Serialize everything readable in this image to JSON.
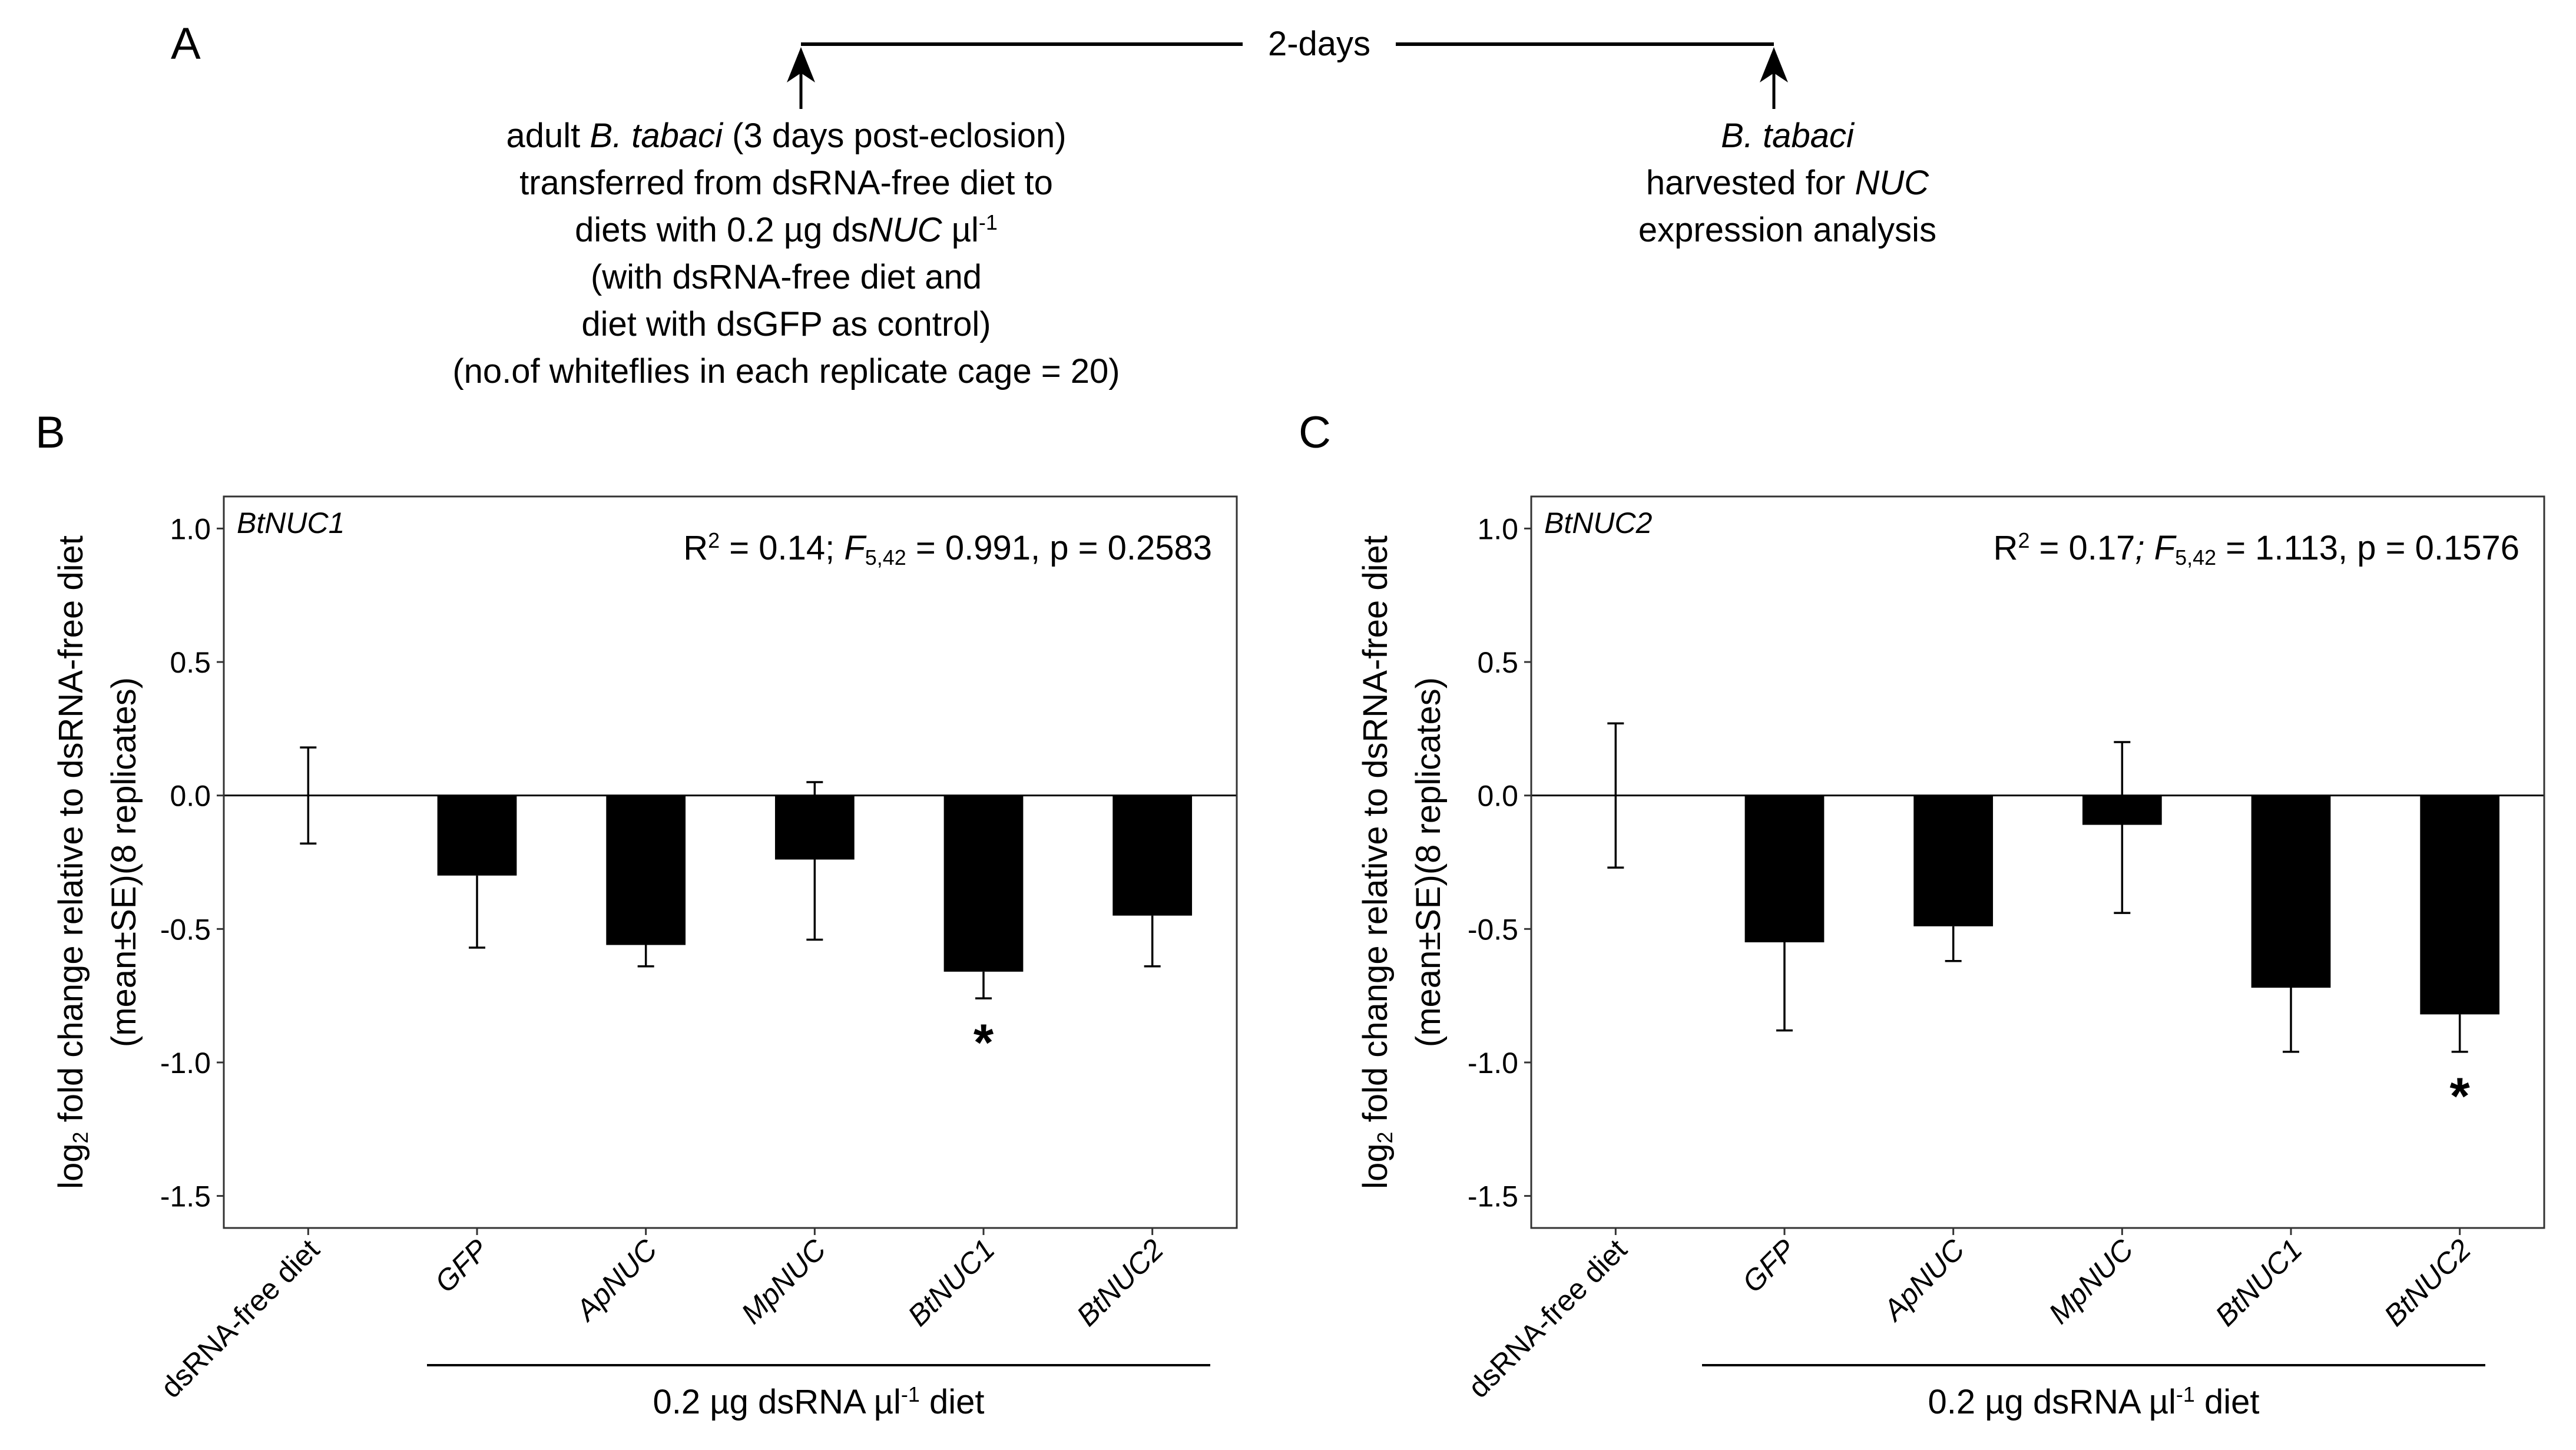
{
  "panels": {
    "a": "A",
    "b": "B",
    "c": "C"
  },
  "timeline": {
    "duration_label": "2-days",
    "start": {
      "lines": [
        [
          {
            "t": "adult "
          },
          {
            "t": "B. tabaci",
            "i": true
          },
          {
            "t": " (3 days post-eclosion)"
          }
        ],
        [
          {
            "t": "transferred from dsRNA-free diet to"
          }
        ],
        [
          {
            "t": "diets with 0.2 µg ds"
          },
          {
            "t": "NUC",
            "i": true
          },
          {
            "t": " µl"
          },
          {
            "t": "-1",
            "sup": true
          }
        ],
        [
          {
            "t": "(with dsRNA-free diet and"
          }
        ],
        [
          {
            "t": "diet with dsGFP as control)"
          }
        ],
        [
          {
            "t": "(no.of whiteflies in each replicate cage = 20)"
          }
        ]
      ]
    },
    "end": {
      "lines": [
        [
          {
            "t": "B. tabaci",
            "i": true
          }
        ],
        [
          {
            "t": "harvested for "
          },
          {
            "t": "NUC",
            "i": true
          }
        ],
        [
          {
            "t": "expression analysis"
          }
        ]
      ]
    }
  },
  "colors": {
    "bar": "#000000",
    "axis_text": "#4d4d4d",
    "frame": "#333333"
  },
  "chart_data": [
    {
      "type": "bar",
      "panel": "B",
      "gene_tag": "BtNUC1",
      "stats": [
        {
          "t": "R"
        },
        {
          "t": "2",
          "sup": true
        },
        {
          "t": " = 0.14; "
        },
        {
          "t": "F",
          "i": true
        },
        {
          "t": "5,42",
          "sub": true
        },
        {
          "t": " = 0.991, p = 0.2583"
        }
      ],
      "categories": [
        "dsRNA-free diet",
        "GFP",
        "ApNUC",
        "MpNUC",
        "BtNUC1",
        "BtNUC2"
      ],
      "values": [
        0.0,
        -0.3,
        -0.56,
        -0.24,
        -0.66,
        -0.45
      ],
      "error_low": [
        -0.18,
        -0.57,
        -0.64,
        -0.54,
        -0.76,
        -0.64
      ],
      "error_high": [
        0.18,
        -0.3,
        -0.56,
        0.05,
        -0.66,
        -0.45
      ],
      "significant": [
        false,
        false,
        false,
        false,
        true,
        false
      ],
      "significance_marker": "*",
      "ylim": [
        -1.62,
        1.12
      ],
      "yticks": [
        1.0,
        0.5,
        0.0,
        -0.5,
        -1.0,
        -1.5
      ],
      "ytick_labels": [
        "1.0",
        "0.5",
        "0.0",
        "-0.5",
        "-1.0",
        "-1.5"
      ],
      "ylabel_line1": [
        {
          "t": "log"
        },
        {
          "t": "2",
          "sub": true
        },
        {
          "t": " fold change relative to dsRNA-free diet"
        }
      ],
      "ylabel_line2": "(mean±SE)(8 replicates)",
      "group_label": [
        {
          "t": "0.2 µg dsRNA µl"
        },
        {
          "t": "-1",
          "sup": true
        },
        {
          "t": " diet"
        }
      ]
    },
    {
      "type": "bar",
      "panel": "C",
      "gene_tag": "BtNUC2",
      "stats": [
        {
          "t": "R"
        },
        {
          "t": "2",
          "sup": true
        },
        {
          "t": " = 0.17"
        },
        {
          "t": "; ",
          "i": true
        },
        {
          "t": "F",
          "i": true
        },
        {
          "t": "5,42",
          "sub": true
        },
        {
          "t": " = 1.113, p = 0.1576"
        }
      ],
      "categories": [
        "dsRNA-free diet",
        "GFP",
        "ApNUC",
        "MpNUC",
        "BtNUC1",
        "BtNUC2"
      ],
      "values": [
        0.0,
        -0.55,
        -0.49,
        -0.11,
        -0.72,
        -0.82
      ],
      "error_low": [
        -0.27,
        -0.88,
        -0.62,
        -0.44,
        -0.96,
        -0.96
      ],
      "error_high": [
        0.27,
        -0.55,
        -0.49,
        0.2,
        -0.72,
        -0.82
      ],
      "significant": [
        false,
        false,
        false,
        false,
        false,
        true
      ],
      "significance_marker": "*",
      "ylim": [
        -1.62,
        1.12
      ],
      "yticks": [
        1.0,
        0.5,
        0.0,
        -0.5,
        -1.0,
        -1.5
      ],
      "ytick_labels": [
        "1.0",
        "0.5",
        "0.0",
        "-0.5",
        "-1.0",
        "-1.5"
      ],
      "ylabel_line1": [
        {
          "t": "log"
        },
        {
          "t": "2",
          "sub": true
        },
        {
          "t": " fold change relative to dsRNA-free diet"
        }
      ],
      "ylabel_line2": "(mean±SE)(8 replicates)",
      "group_label": [
        {
          "t": "0.2 µg dsRNA µl"
        },
        {
          "t": "-1",
          "sup": true
        },
        {
          "t": " diet"
        }
      ]
    }
  ]
}
